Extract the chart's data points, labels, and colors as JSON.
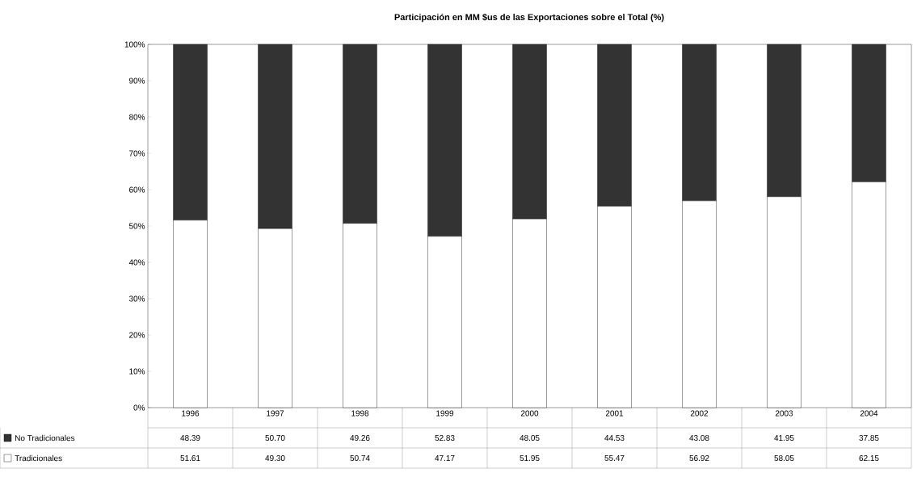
{
  "chart_data": {
    "type": "bar",
    "stacked": true,
    "title": "Participación en MM $us de las Exportaciones sobre el Total (%)",
    "categories": [
      "1996",
      "1997",
      "1998",
      "1999",
      "2000",
      "2001",
      "2002",
      "2003",
      "2004"
    ],
    "series": [
      {
        "name": "Tradicionales",
        "color": "#ffffff",
        "values": [
          51.61,
          49.3,
          50.74,
          47.17,
          51.95,
          55.47,
          56.92,
          58.05,
          62.15
        ],
        "value_labels": [
          "51.61",
          "49.30",
          "50.74",
          "47.17",
          "51.95",
          "55.47",
          "56.92",
          "58.05",
          "62.15"
        ]
      },
      {
        "name": "No Tradicionales",
        "color": "#333333",
        "values": [
          48.39,
          50.7,
          49.26,
          52.83,
          48.05,
          44.53,
          43.08,
          41.95,
          37.85
        ],
        "value_labels": [
          "48.39",
          "50.70",
          "49.26",
          "52.83",
          "48.05",
          "44.53",
          "43.08",
          "41.95",
          "37.85"
        ]
      }
    ],
    "ylim": [
      0,
      100
    ],
    "yticks": [
      {
        "value": 0,
        "label": "0%"
      },
      {
        "value": 10,
        "label": "10%"
      },
      {
        "value": 20,
        "label": "20%"
      },
      {
        "value": 30,
        "label": "30%"
      },
      {
        "value": 40,
        "label": "40%"
      },
      {
        "value": 50,
        "label": "50%"
      },
      {
        "value": 60,
        "label": "60%"
      },
      {
        "value": 70,
        "label": "70%"
      },
      {
        "value": 80,
        "label": "80%"
      },
      {
        "value": 90,
        "label": "90%"
      },
      {
        "value": 100,
        "label": "100%"
      }
    ],
    "legend": "bottom"
  }
}
